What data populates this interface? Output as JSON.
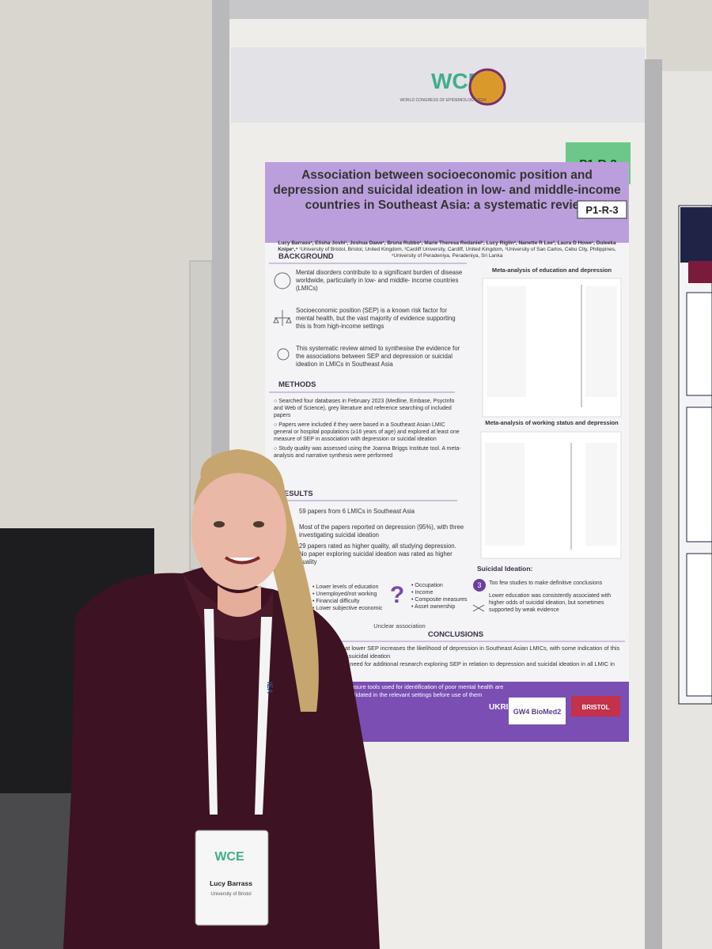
{
  "board_label": "P1-R-3",
  "header": {
    "logo": "WCE",
    "logo_subtitle": "WORLD CONGRESS OF EPIDEMIOLOGY 2024"
  },
  "poster": {
    "title": "Association between socioeconomic position and depression and suicidal ideation in low- and middle-income countries in Southeast Asia: a systematic review",
    "poster_id": "P1-R-3",
    "authors": "Lucy Barrass¹, Elisha Joshi¹, Joshua Dawe¹, Bruna Rubbo¹, Marie Theresa Redaniel¹, Lucy Riglin², Nanette R Lee³, Laura D Howe¹, Duleeka Knipe¹,⁴",
    "affiliations": "¹University of Bristol, Bristol, United Kingdom, ²Cardiff University, Cardiff, United Kingdom, ³University of San Carlos, Cebu City, Philippines, ⁴University of Peradeniya, Peradeniya, Sri Lanka",
    "background": {
      "heading": "BACKGROUND",
      "items": [
        "Mental disorders contribute to a significant burden of disease worldwide, particularly in low- and middle- income countries (LMICs)",
        "Socioeconomic position (SEP) is a known risk factor for mental health, but the vast majority of evidence supporting this is from high-income settings",
        "This systematic review aimed to synthesise the evidence for the associations between SEP and depression or suicidal ideation in LMICs in Southeast Asia"
      ]
    },
    "methods": {
      "heading": "METHODS",
      "items": [
        "Searched four databases in February 2023 (Medline, Embase, PsycInfo and Web of Science), grey literature and reference searching of included papers",
        "Papers were included if they were based in a Southeast Asian LMIC general or hospital populations (≥16 years of age) and explored at least one measure of SEP in association with depression or suicidal ideation",
        "Study quality was assessed using the Joanna Briggs Institute tool. A meta-analysis and narrative synthesis were performed"
      ]
    },
    "results": {
      "heading": "RESULTS",
      "items": [
        "59 papers from 6 LMICs in Southeast Asia",
        "Most of the papers reported on depression (95%), with three investigating suicidal ideation",
        "29 papers rated as higher quality, all studying depression. No paper exploring suicidal ideation was rated as higher quality"
      ]
    },
    "depression_items": [
      "Lower levels of education",
      "Unemployed/not working",
      "Financial difficulty",
      "Lower subjective economic"
    ],
    "unclear_items": [
      "Occupation",
      "Income",
      "Composite measures",
      "Asset ownership"
    ],
    "unclear_label": "Unclear association",
    "plot_titles": [
      "Meta-analysis of education and depression",
      "Meta-analysis of working status and depression"
    ],
    "suicidal": {
      "heading": "Suicidal Ideation:",
      "items": [
        "Too few studies to make definitive conclusions",
        "Lower education was consistently associated with higher odds of suicidal ideation, but sometimes supported by weak evidence"
      ]
    },
    "conclusions": {
      "heading": "CONCLUSIONS",
      "items": [
        "that lower SEP increases the likelihood of depression in Southeast Asian LMICs, with some indication of this for suicidal ideation",
        "the need for additional research exploring SEP in relation to depression and suicidal ideation in all LMIC in",
        "ensure tools used for identification of poor mental health are validated in the relevant settings before use of them"
      ]
    },
    "footer_logos": [
      "UKRI",
      "GW4 BioMed2",
      "BRISTOL"
    ]
  },
  "badge": {
    "logo": "WCE",
    "name": "Lucy Barrass",
    "affiliation": "University of Bristol"
  },
  "lanyard": "IEA"
}
